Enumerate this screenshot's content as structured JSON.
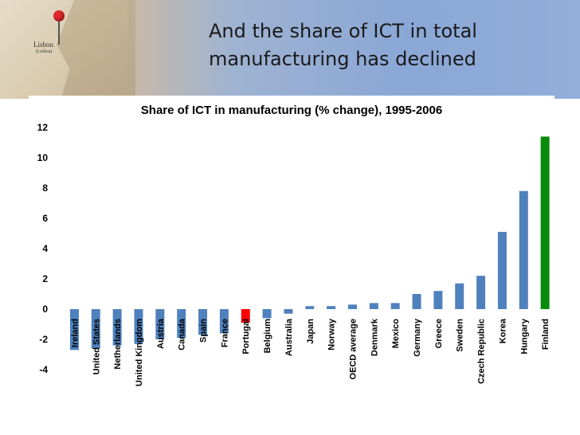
{
  "slide": {
    "title_line1": "And the share of ICT in total",
    "title_line2": "manufacturing has declined",
    "map_label": "Lisbon",
    "map_sublabel": "(Lisboa)"
  },
  "colors": {
    "bar_default": "#4f81bd",
    "bar_portugal": "#ff0000",
    "bar_finland": "#0a8a0a"
  },
  "chart_data": {
    "type": "bar",
    "title": "Share of ICT in manufacturing (% change), 1995-2006",
    "xlabel": "",
    "ylabel": "",
    "ylim": [
      -4,
      12
    ],
    "yticks": [
      12,
      10,
      8,
      6,
      4,
      2,
      0,
      -2,
      -4
    ],
    "grid": false,
    "legend": "none",
    "categories": [
      "Ireland",
      "United States",
      "Netherlands",
      "United Kingdom",
      "Austria",
      "Canada",
      "Spain",
      "France",
      "Portugal",
      "Belgium",
      "Australia",
      "Japan",
      "Norway",
      "OECD average",
      "Denmark",
      "Mexico",
      "Germany",
      "Greece",
      "Sweden",
      "Czech Republic",
      "Korea",
      "Hungary",
      "Finland"
    ],
    "values": [
      -2.7,
      -2.6,
      -2.4,
      -2.3,
      -2.0,
      -1.9,
      -1.7,
      -1.6,
      -0.9,
      -0.6,
      -0.3,
      0.2,
      0.2,
      0.3,
      0.4,
      0.4,
      1.0,
      1.2,
      1.7,
      2.2,
      5.1,
      7.8,
      11.4
    ],
    "highlight": {
      "Portugal": "bar_portugal",
      "Finland": "bar_finland"
    }
  }
}
